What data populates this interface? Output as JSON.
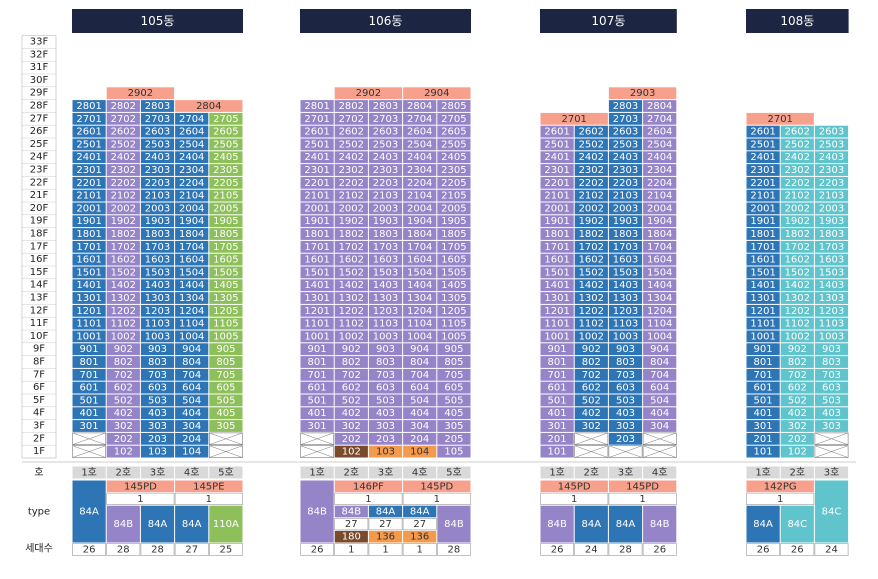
{
  "floors": [
    "33F",
    "32F",
    "31F",
    "30F",
    "29F",
    "28F",
    "27F",
    "26F",
    "25F",
    "24F",
    "23F",
    "22F",
    "21F",
    "20F",
    "19F",
    "18F",
    "17F",
    "16F",
    "15F",
    "14F",
    "13F",
    "12F",
    "11F",
    "10F",
    "9F",
    "8F",
    "7F",
    "6F",
    "5F",
    "4F",
    "3F",
    "2F",
    "1F"
  ],
  "row_labels": {
    "line": "호",
    "type": "type",
    "count": "세대수"
  },
  "buildings": [
    {
      "name": "105동",
      "columns": [
        {
          "line": "1호",
          "count": 26,
          "color": "#2e75b6",
          "units": [
            null,
            null,
            "301",
            "401",
            "501",
            "601",
            "701",
            "801",
            "901",
            "1001",
            "1101",
            "1201",
            "1301",
            "1401",
            "1501",
            "1601",
            "1701",
            "1801",
            "1901",
            "2001",
            "2101",
            "2201",
            "2301",
            "2401",
            "2501",
            "2601",
            "2701",
            "2801"
          ]
        },
        {
          "line": "2호",
          "count": 28,
          "color": "#9584c8",
          "units": [
            "102",
            "202",
            "302",
            "402",
            "502",
            "602",
            "702",
            "802",
            "902",
            "1002",
            "1102",
            "1202",
            "1302",
            "1402",
            "1502",
            "1602",
            "1702",
            "1802",
            "1902",
            "2002",
            "2102",
            "2202",
            "2302",
            "2402",
            "2502",
            "2602",
            "2702",
            "2802",
            {
              "text": "2902",
              "span": 2,
              "color": "#f7a08c"
            }
          ]
        },
        {
          "line": "3호",
          "count": 28,
          "color": "#2e75b6",
          "units": [
            "103",
            "203",
            "303",
            "403",
            "503",
            "603",
            "703",
            "803",
            "903",
            "1003",
            "1103",
            "1203",
            "1303",
            "1403",
            "1503",
            "1603",
            "1703",
            "1803",
            "1903",
            "2003",
            "2103",
            "2203",
            "2303",
            "2403",
            "2503",
            "2603",
            "2703",
            "2803"
          ]
        },
        {
          "line": "4호",
          "count": 27,
          "color": "#2e75b6",
          "units": [
            "104",
            "204",
            "304",
            "404",
            "504",
            "604",
            "704",
            "804",
            "904",
            "1004",
            "1104",
            "1204",
            "1304",
            "1404",
            "1504",
            "1604",
            "1704",
            "1804",
            "1904",
            "2004",
            "2104",
            "2204",
            "2304",
            "2404",
            "2504",
            "2604",
            "2704",
            {
              "text": "2804",
              "span": 2,
              "color": "#f7a08c"
            }
          ]
        },
        {
          "line": "5호",
          "count": 25,
          "color": "#8dbf5a",
          "units": [
            null,
            null,
            "305",
            "405",
            "505",
            "605",
            "705",
            "805",
            "905",
            "1005",
            "1105",
            "1205",
            "1305",
            "1405",
            "1505",
            "1605",
            "1705",
            "1805",
            "1905",
            "2005",
            "2105",
            "2205",
            "2305",
            "2405",
            "2505",
            "2605",
            "2705"
          ]
        }
      ],
      "types": [
        [
          {
            "text": "84A",
            "rows": 5,
            "color": "#2e75b6"
          },
          {
            "text": "145PD",
            "cols": 2,
            "color": "#f7a08c"
          },
          {
            "text": "145PE",
            "cols": 2,
            "color": "#f7a08c"
          }
        ],
        [
          {
            "text": "1",
            "cols": 2,
            "color": "#ffffff"
          },
          {
            "text": "1",
            "cols": 2,
            "color": "#ffffff"
          }
        ],
        [
          {
            "text": "84B",
            "rows": 3,
            "color": "#9584c8"
          },
          {
            "text": "84A",
            "rows": 3,
            "color": "#2e75b6"
          },
          {
            "text": "84A",
            "rows": 3,
            "color": "#2e75b6"
          },
          {
            "text": "110A",
            "rows": 3,
            "color": "#8dbf5a"
          }
        ]
      ]
    },
    {
      "name": "106동",
      "columns": [
        {
          "line": "1호",
          "count": 26,
          "color": "#9584c8",
          "units": [
            null,
            null,
            "301",
            "401",
            "501",
            "601",
            "701",
            "801",
            "901",
            "1001",
            "1101",
            "1201",
            "1301",
            "1401",
            "1501",
            "1601",
            "1701",
            "1801",
            "1901",
            "2001",
            "2101",
            "2201",
            "2301",
            "2401",
            "2501",
            "2601",
            "2701",
            "2801"
          ]
        },
        {
          "line": "2호",
          "count": 1,
          "color": "#9584c8",
          "units": [
            {
              "text": "102",
              "color": "#7a4a2c"
            },
            "202",
            "302",
            "402",
            "502",
            "602",
            "702",
            "802",
            "902",
            "1002",
            "1102",
            "1202",
            "1302",
            "1402",
            "1502",
            "1602",
            "1702",
            "1802",
            "1902",
            "2002",
            "2102",
            "2202",
            "2302",
            "2402",
            "2502",
            "2602",
            "2702",
            "2802",
            {
              "text": "2902",
              "span": 2,
              "color": "#f7a08c"
            }
          ]
        },
        {
          "line": "3호",
          "count": 1,
          "color": "#9584c8",
          "units": [
            {
              "text": "103",
              "color": "#f39a4c"
            },
            "203",
            "303",
            "403",
            "503",
            "603",
            "703",
            "803",
            "903",
            "1003",
            "1103",
            "1203",
            "1303",
            "1403",
            "1503",
            "1603",
            "1703",
            "1803",
            "1903",
            "2003",
            "2103",
            "2203",
            "2303",
            "2403",
            "2503",
            "2603",
            "2703",
            "2803"
          ]
        },
        {
          "line": "4호",
          "count": 1,
          "color": "#9584c8",
          "units": [
            {
              "text": "104",
              "color": "#f39a4c"
            },
            "204",
            "304",
            "404",
            "504",
            "604",
            "704",
            "804",
            "904",
            "1004",
            "1104",
            "1204",
            "1304",
            "1404",
            "1504",
            "1604",
            "1704",
            "1804",
            "1904",
            "2004",
            "2104",
            "2204",
            "2304",
            "2404",
            "2504",
            "2604",
            "2704",
            "2804",
            {
              "text": "2904",
              "span": 2,
              "color": "#f7a08c"
            }
          ]
        },
        {
          "line": "5호",
          "count": 28,
          "color": "#9584c8",
          "units": [
            "105",
            "205",
            "305",
            "405",
            "505",
            "605",
            "705",
            "805",
            "905",
            "1005",
            "1105",
            "1205",
            "1305",
            "1405",
            "1505",
            "1605",
            "1705",
            "1805",
            "1905",
            "2005",
            "2105",
            "2205",
            "2305",
            "2405",
            "2505",
            "2605",
            "2705",
            "2805"
          ]
        }
      ],
      "types": [
        [
          {
            "text": "84B",
            "rows": 5,
            "color": "#9584c8"
          },
          {
            "text": "146PF",
            "cols": 2,
            "color": "#f7a08c"
          },
          {
            "text": "145PD",
            "cols": 2,
            "color": "#f7a08c"
          }
        ],
        [
          {
            "text": "1",
            "cols": 2,
            "color": "#ffffff"
          },
          {
            "text": "1",
            "cols": 2,
            "color": "#ffffff"
          }
        ],
        [
          {
            "text": "84B",
            "color": "#9584c8"
          },
          {
            "text": "84A",
            "color": "#2e75b6"
          },
          {
            "text": "84A",
            "color": "#2e75b6"
          },
          {
            "text": "84B",
            "rows": 3,
            "color": "#9584c8"
          }
        ],
        [
          {
            "text": "27",
            "color": "#ffffff"
          },
          {
            "text": "27",
            "color": "#ffffff"
          },
          {
            "text": "27",
            "color": "#ffffff"
          }
        ],
        [
          {
            "text": "180",
            "color": "#7a4a2c"
          },
          {
            "text": "136",
            "color": "#f39a4c"
          },
          {
            "text": "136",
            "color": "#f39a4c"
          }
        ]
      ]
    },
    {
      "name": "107동",
      "columns": [
        {
          "line": "1호",
          "count": 26,
          "color": "#9584c8",
          "units": [
            "101",
            "201",
            "301",
            "401",
            "501",
            "601",
            "701",
            "801",
            "901",
            "1001",
            "1101",
            "1201",
            "1301",
            "1401",
            "1501",
            "1601",
            "1701",
            "1801",
            "1901",
            "2001",
            "2101",
            "2201",
            "2301",
            "2401",
            "2501",
            "2601",
            {
              "text": "2701",
              "span": 2,
              "color": "#f7a08c"
            }
          ]
        },
        {
          "line": "2호",
          "count": 24,
          "color": "#2e75b6",
          "units": [
            null,
            null,
            "302",
            "402",
            "502",
            "602",
            "702",
            "802",
            "902",
            "1002",
            "1102",
            "1202",
            "1302",
            "1402",
            "1502",
            "1602",
            "1702",
            "1802",
            "1902",
            "2002",
            "2102",
            "2202",
            "2302",
            "2402",
            "2502",
            "2602"
          ]
        },
        {
          "line": "3호",
          "count": 28,
          "color": "#2e75b6",
          "units": [
            null,
            "203",
            "303",
            "403",
            "503",
            "603",
            "703",
            "803",
            "903",
            "1003",
            "1103",
            "1203",
            "1303",
            "1403",
            "1503",
            "1603",
            "1703",
            "1803",
            "1903",
            "2003",
            "2103",
            "2203",
            "2303",
            "2403",
            "2503",
            "2603",
            "2703",
            "2803",
            {
              "text": "2903",
              "span": 2,
              "color": "#f7a08c"
            }
          ]
        },
        {
          "line": "4호",
          "count": 26,
          "color": "#9584c8",
          "units": [
            null,
            null,
            "304",
            "404",
            "504",
            "604",
            "704",
            "804",
            "904",
            "1004",
            "1104",
            "1204",
            "1304",
            "1404",
            "1504",
            "1604",
            "1704",
            "1804",
            "1904",
            "2004",
            "2104",
            "2204",
            "2304",
            "2404",
            "2504",
            "2604",
            "2704",
            "2804"
          ]
        }
      ],
      "types": [
        [
          {
            "text": "145PD",
            "cols": 2,
            "color": "#f7a08c"
          },
          {
            "text": "145PD",
            "cols": 2,
            "color": "#f7a08c"
          }
        ],
        [
          {
            "text": "1",
            "cols": 2,
            "color": "#ffffff"
          },
          {
            "text": "1",
            "cols": 2,
            "color": "#ffffff"
          }
        ],
        [
          {
            "text": "84B",
            "rows": 3,
            "color": "#9584c8"
          },
          {
            "text": "84A",
            "rows": 3,
            "color": "#2e75b6"
          },
          {
            "text": "84A",
            "rows": 3,
            "color": "#2e75b6"
          },
          {
            "text": "84B",
            "rows": 3,
            "color": "#9584c8"
          }
        ]
      ]
    },
    {
      "name": "108동",
      "columns": [
        {
          "line": "1호",
          "count": 26,
          "color": "#2e75b6",
          "units": [
            "101",
            "201",
            "301",
            "401",
            "501",
            "601",
            "701",
            "801",
            "901",
            "1001",
            "1101",
            "1201",
            "1301",
            "1401",
            "1501",
            "1601",
            "1701",
            "1801",
            "1901",
            "2001",
            "2101",
            "2201",
            "2301",
            "2401",
            "2501",
            "2601",
            {
              "text": "2701",
              "span": 2,
              "color": "#f7a08c"
            }
          ]
        },
        {
          "line": "2호",
          "count": 26,
          "color": "#5fc4cc",
          "units": [
            "102",
            "202",
            "302",
            "402",
            "502",
            "602",
            "702",
            "802",
            "902",
            "1002",
            "1102",
            "1202",
            "1302",
            "1402",
            "1502",
            "1602",
            "1702",
            "1802",
            "1902",
            "2002",
            "2102",
            "2202",
            "2302",
            "2402",
            "2502",
            "2602"
          ]
        },
        {
          "line": "3호",
          "count": 24,
          "color": "#5fc4cc",
          "units": [
            null,
            null,
            "303",
            "403",
            "503",
            "603",
            "703",
            "803",
            "903",
            "1003",
            "1103",
            "1203",
            "1303",
            "1403",
            "1503",
            "1603",
            "1703",
            "1803",
            "1903",
            "2003",
            "2103",
            "2203",
            "2303",
            "2403",
            "2503",
            "2603"
          ]
        }
      ],
      "types": [
        [
          {
            "text": "142PG",
            "cols": 2,
            "color": "#f7a08c"
          },
          {
            "text": "84C",
            "rows": 5,
            "color": "#5fc4cc"
          }
        ],
        [
          {
            "text": "1",
            "cols": 2,
            "color": "#ffffff"
          }
        ],
        [
          {
            "text": "84A",
            "rows": 3,
            "color": "#2e75b6"
          },
          {
            "text": "84C",
            "rows": 3,
            "color": "#5fc4cc"
          }
        ]
      ]
    }
  ]
}
